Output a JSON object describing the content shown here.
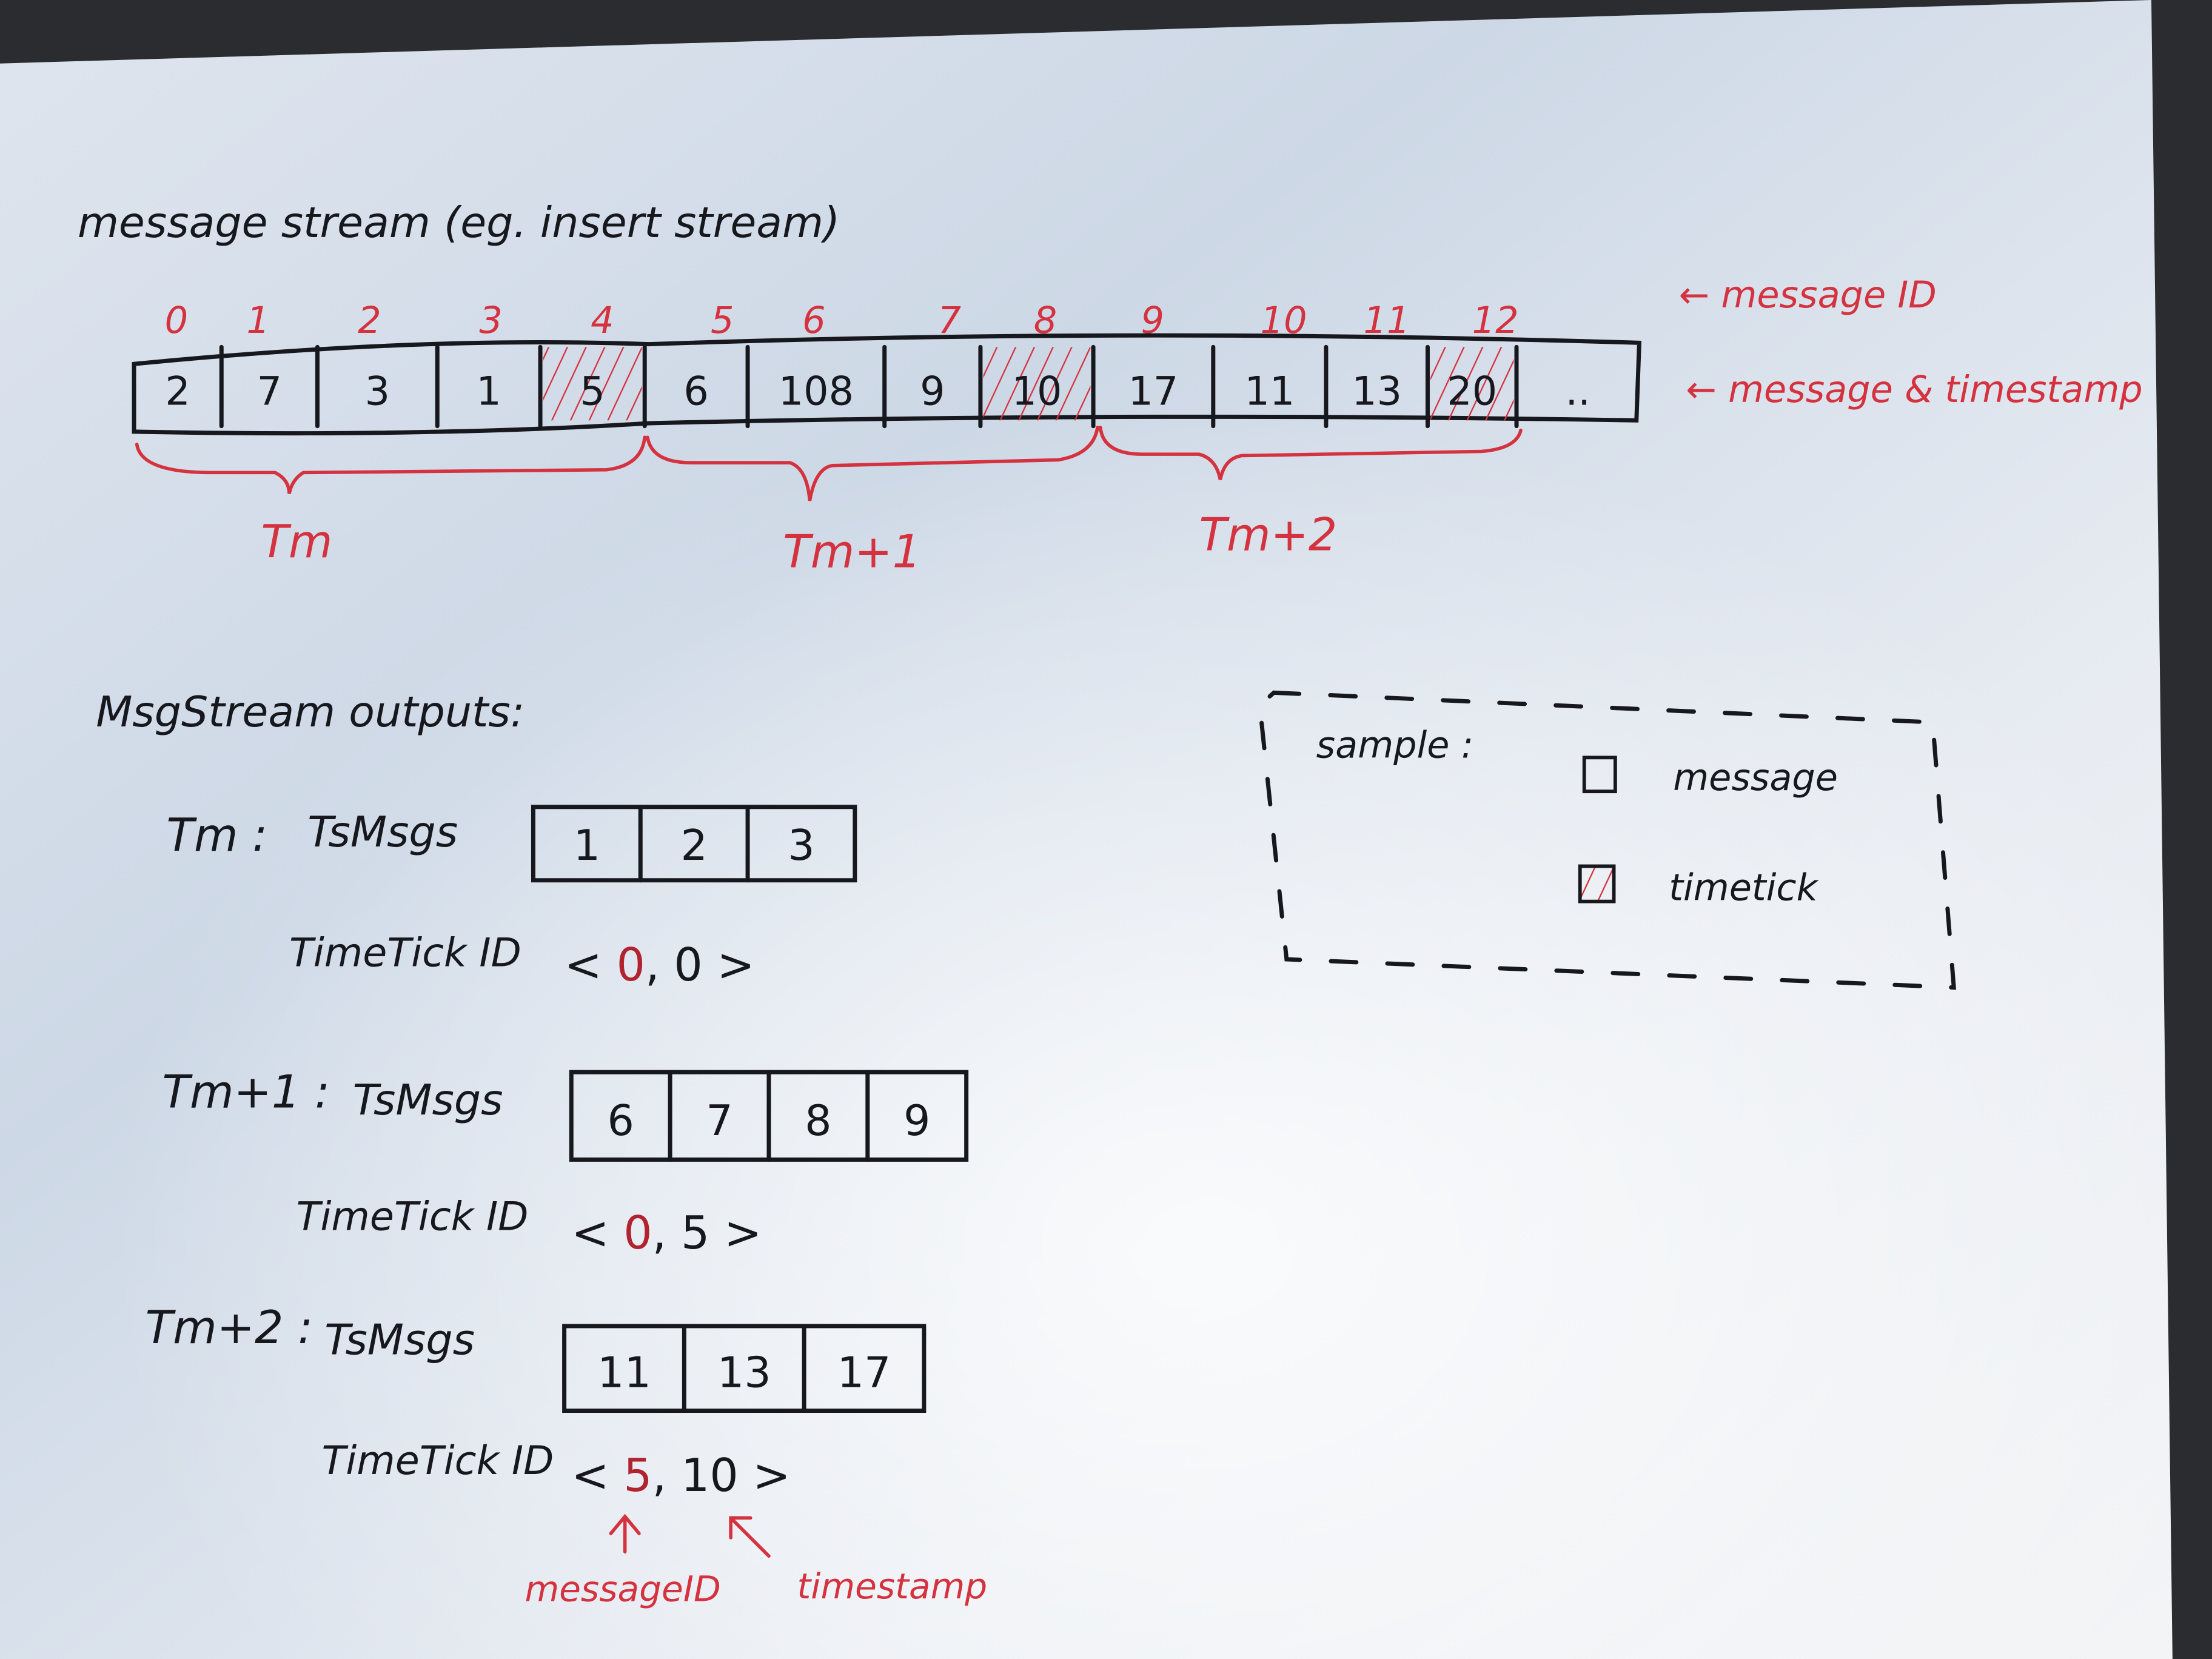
{
  "title": "message stream (eg. insert stream)",
  "stream": {
    "message_ids": [
      "0",
      "1",
      "2",
      "3",
      "4",
      "5",
      "6",
      "7",
      "8",
      "9",
      "10",
      "11",
      "12"
    ],
    "cells": [
      {
        "value": "2",
        "timetick": false
      },
      {
        "value": "7",
        "timetick": false
      },
      {
        "value": "3",
        "timetick": false
      },
      {
        "value": "1",
        "timetick": false
      },
      {
        "value": "5",
        "timetick": true
      },
      {
        "value": "6",
        "timetick": false
      },
      {
        "value": "108",
        "timetick": false
      },
      {
        "value": "9",
        "timetick": false
      },
      {
        "value": "10",
        "timetick": true
      },
      {
        "value": "17",
        "timetick": false
      },
      {
        "value": "11",
        "timetick": false
      },
      {
        "value": "13",
        "timetick": false
      },
      {
        "value": "20",
        "timetick": true
      },
      {
        "value": "..",
        "timetick": false
      }
    ],
    "id_annotation": "← message ID",
    "value_annotation": "← message & timestamp",
    "periods": [
      "Tm",
      "Tm+1",
      "Tm+2"
    ]
  },
  "outputs": {
    "heading": "MsgStream outputs:",
    "ts_label": "TsMsgs",
    "timetick_label": "TimeTick ID",
    "groups": [
      {
        "period": "Tm :",
        "msgs": [
          "1",
          "2",
          "3"
        ],
        "timetick": {
          "message_id": "0",
          "timestamp": "0"
        }
      },
      {
        "period": "Tm+1 :",
        "msgs": [
          "6",
          "7",
          "8",
          "9"
        ],
        "timetick": {
          "message_id": "0",
          "timestamp": "5"
        }
      },
      {
        "period": "Tm+2 :",
        "msgs": [
          "11",
          "13",
          "17"
        ],
        "timetick": {
          "message_id": "5",
          "timestamp": "10"
        }
      }
    ],
    "annotations": {
      "message_id": "messageID",
      "timestamp": "timestamp"
    }
  },
  "legend": {
    "title": "sample :",
    "items": [
      {
        "label": "message",
        "symbol": "empty-square"
      },
      {
        "label": "timetick",
        "symbol": "red-hatched-square"
      }
    ]
  },
  "colors": {
    "ink": "#16181d",
    "red_ink": "#d5323f",
    "paper": "#e9eef5"
  }
}
